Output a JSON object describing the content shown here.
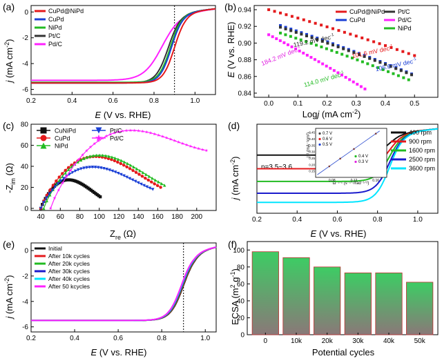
{
  "panels": {
    "a": {
      "letter": "(a)",
      "ylabel_italic": "j",
      "ylabel_rest": " (mA cm",
      "ylabel_sup": "-2",
      "ylabel_close": ")",
      "xlabel_italic": "E",
      "xlabel_rest": " (V vs. RHE)",
      "dashed_x": 0.9
    },
    "b": {
      "letter": "(b)",
      "ylabel_italic": "E",
      "ylabel_rest": " (V vs. RHE)",
      "xlabel_italic": "j",
      "xlabel_pre": "Log",
      "xlabel_rest": " (mA cm",
      "xlabel_sup": "-2",
      "xlabel_close": ")",
      "slope_sup": "-1",
      "slopes": [
        {
          "text": "101.6 mV dec",
          "color": "#e41a1c"
        },
        {
          "text": "119.2 mV dec",
          "color": "#222222"
        },
        {
          "text": "106.6 mV dec",
          "color": "#1a3fd6"
        },
        {
          "text": "114.0 mV dec",
          "color": "#22bb22"
        },
        {
          "text": "184.2 mV dec",
          "color": "#e020e0"
        }
      ]
    },
    "c": {
      "letter": "(c)",
      "ylabel_main": "-Z",
      "ylabel_sub": "im",
      "ylabel_unit": " (Ω)",
      "xlabel_main": "Z",
      "xlabel_sub": "re",
      "xlabel_unit": " (Ω)"
    },
    "d": {
      "letter": "(d)",
      "n_label": "n=3.5~3.6",
      "ylabel_italic": "j",
      "ylabel_rest": " (mA cm",
      "ylabel_sup": "-2",
      "ylabel_close": ")",
      "xlabel_italic": "E",
      "xlabel_rest": " (V vs. RHE)",
      "inset": {
        "ylabel": "j⁻¹ (mA⁻¹cm²)",
        "xlabel": "ω⁻¹ᐟ² (s⁻¹ᐟ²/rad⁻¹ᐟ²)",
        "legend": [
          {
            "label": "0.7 V",
            "color": "#444444"
          },
          {
            "label": "0.6 V",
            "color": "#e41a1c"
          },
          {
            "label": "0.5 V",
            "color": "#1a3fd6"
          },
          {
            "label": "0.4 V",
            "color": "#22bb22"
          },
          {
            "label": "0.3 V",
            "color": "#e020e0"
          }
        ],
        "xticks": [
          "0.08",
          "0.12",
          "0.16"
        ],
        "yticks": [
          "0.15",
          "0.20",
          "0.25",
          "0.30",
          "0.35",
          "0.40",
          "0.45"
        ]
      }
    },
    "e": {
      "letter": "(e)",
      "ylabel_italic": "j",
      "ylabel_rest": " (mA cm",
      "ylabel_sup": "-2",
      "ylabel_close": ")",
      "xlabel_italic": "E",
      "xlabel_rest": " (V vs. RHE)",
      "dashed_x": 0.9
    },
    "f": {
      "letter": "(f)",
      "ylabel": "ECSA (m",
      "ylabel_sup": "2",
      "ylabel_mid": " g",
      "ylabel_sup2": "-1",
      "ylabel_close": ")",
      "xlabel": "Potential cycles"
    }
  },
  "chart_data": [
    {
      "panel": "a",
      "type": "line",
      "xlabel": "E (V vs. RHE)",
      "ylabel": "j (mA cm-2)",
      "xlim": [
        0.2,
        1.1
      ],
      "ylim": [
        -6.4,
        0.5
      ],
      "xticks": [
        0.2,
        0.4,
        0.6,
        0.8,
        1.0
      ],
      "yticks": [
        0,
        -2,
        -4,
        -6
      ],
      "legend_position": "top-left",
      "series": [
        {
          "name": "CuPd@NiPd",
          "color": "#e41a1c",
          "limit": -5.5,
          "half_wave": 0.9,
          "width": 0.028
        },
        {
          "name": "CuPd",
          "color": "#1a3fd6",
          "limit": -5.5,
          "half_wave": 0.885,
          "width": 0.028
        },
        {
          "name": "NiPd",
          "color": "#22bb22",
          "limit": -5.45,
          "half_wave": 0.88,
          "width": 0.028
        },
        {
          "name": "Pt/C",
          "color": "#333333",
          "limit": -5.5,
          "half_wave": 0.87,
          "width": 0.03
        },
        {
          "name": "Pd/C",
          "color": "#ff20ff",
          "limit": -5.3,
          "half_wave": 0.84,
          "width": 0.045
        }
      ]
    },
    {
      "panel": "b",
      "type": "scatter",
      "xlabel": "Logj (mA cm-2)",
      "ylabel": "E (V vs. RHE)",
      "xlim": [
        -0.05,
        0.58
      ],
      "ylim": [
        0.835,
        0.945
      ],
      "xticks": [
        0.0,
        0.1,
        0.2,
        0.3,
        0.4,
        0.5
      ],
      "yticks": [
        0.84,
        0.86,
        0.88,
        0.9,
        0.92,
        0.94
      ],
      "legend_position": "top-right",
      "series": [
        {
          "name": "CuPd@NiPd",
          "color": "#e41a1c",
          "x": [
            0.0,
            0.5
          ],
          "y": [
            0.94,
            0.891
          ]
        },
        {
          "name": "CuPd",
          "color": "#1a3fd6",
          "x": [
            0.04,
            0.49
          ],
          "y": [
            0.921,
            0.869
          ]
        },
        {
          "name": "Pt/C",
          "color": "#333333",
          "x": [
            0.04,
            0.49
          ],
          "y": [
            0.919,
            0.868
          ]
        },
        {
          "name": "NiPd",
          "color": "#22bb22",
          "x": [
            0.04,
            0.48
          ],
          "y": [
            0.912,
            0.862
          ]
        },
        {
          "name": "Pd/C",
          "color": "#ff20ff",
          "x": [
            0.0,
            0.33
          ],
          "y": [
            0.91,
            0.851
          ]
        }
      ]
    },
    {
      "panel": "c",
      "type": "scatter",
      "xlabel": "Zre (Ω)",
      "ylabel": "-Zim (Ω)",
      "xlim": [
        30,
        220
      ],
      "ylim": [
        -2,
        80
      ],
      "xticks": [
        40,
        60,
        80,
        100,
        120,
        140,
        160,
        180,
        200
      ],
      "yticks": [
        0,
        20,
        40,
        60,
        80
      ],
      "legend_position": "top-left",
      "series": [
        {
          "name": "CuNiPd",
          "color": "#111111",
          "marker": "square",
          "x0": 40,
          "x1": 101,
          "peak": 25
        },
        {
          "name": "CuPd",
          "color": "#e41a1c",
          "marker": "circle",
          "x0": 40,
          "x1": 163,
          "peak": 51
        },
        {
          "name": "NiPd",
          "color": "#22bb22",
          "marker": "triangle-up",
          "x0": 43,
          "x1": 167,
          "peak": 52
        },
        {
          "name": "Pt/C",
          "color": "#1a3fd6",
          "marker": "triangle-down",
          "x0": 40,
          "x1": 155,
          "peak": 40
        },
        {
          "name": "Pd/C",
          "color": "#ff20ff",
          "marker": "star",
          "x0": 50,
          "x1": 210,
          "peak": 70
        }
      ]
    },
    {
      "panel": "d",
      "type": "line",
      "xlabel": "E (V vs. RHE)",
      "ylabel": "j (mA cm-2)",
      "xlim": [
        0.2,
        1.1
      ],
      "xticks": [
        0.2,
        0.4,
        0.6,
        0.8,
        1.0
      ],
      "legend_position": "right",
      "series": [
        {
          "name": "400 rpm",
          "color": "#111111",
          "limit": -2.6
        },
        {
          "name": "900 rpm",
          "color": "#e41a1c",
          "limit": -4.1
        },
        {
          "name": "1600 rpm",
          "color": "#22bb22",
          "limit": -5.5
        },
        {
          "name": "2500 rpm",
          "color": "#1a1acc",
          "limit": -6.8
        },
        {
          "name": "3600 rpm",
          "color": "#00e5ff",
          "limit": -7.8
        }
      ],
      "inset": {
        "type": "line",
        "xlim": [
          0.05,
          0.18
        ],
        "ylim": [
          0.1,
          0.48
        ],
        "series": [
          {
            "name": "0.7 V",
            "x": [
              0.053,
              0.167
            ],
            "y": [
              0.12,
              0.46
            ]
          },
          {
            "name": "0.6 V",
            "x": [
              0.053,
              0.167
            ],
            "y": [
              0.12,
              0.46
            ]
          },
          {
            "name": "0.5 V",
            "x": [
              0.053,
              0.167
            ],
            "y": [
              0.12,
              0.46
            ]
          },
          {
            "name": "0.4 V",
            "x": [
              0.053,
              0.167
            ],
            "y": [
              0.12,
              0.46
            ]
          },
          {
            "name": "0.3 V",
            "x": [
              0.053,
              0.167
            ],
            "y": [
              0.12,
              0.46
            ]
          }
        ]
      }
    },
    {
      "panel": "e",
      "type": "line",
      "xlabel": "E (V vs. RHE)",
      "ylabel": "j (mA cm-2)",
      "xlim": [
        0.2,
        1.05
      ],
      "ylim": [
        -6.4,
        0.6
      ],
      "xticks": [
        0.2,
        0.4,
        0.6,
        0.8,
        1.0
      ],
      "yticks": [
        0,
        -2,
        -4,
        -6
      ],
      "legend_position": "top-left",
      "series": [
        {
          "name": "Initial",
          "color": "#111111",
          "limit": -5.5,
          "half_wave": 0.9
        },
        {
          "name": "After 10k cycles",
          "color": "#e41a1c",
          "limit": -5.5,
          "half_wave": 0.898
        },
        {
          "name": "After 20k cycles",
          "color": "#22bb22",
          "limit": -5.5,
          "half_wave": 0.896
        },
        {
          "name": "After 30k cycles",
          "color": "#1a1acc",
          "limit": -5.5,
          "half_wave": 0.894
        },
        {
          "name": "After 40k cycles",
          "color": "#00e5ff",
          "limit": -5.5,
          "half_wave": 0.892
        },
        {
          "name": "After 50 kcycles",
          "color": "#ff20ff",
          "limit": -5.5,
          "half_wave": 0.89
        }
      ]
    },
    {
      "panel": "f",
      "type": "bar",
      "xlabel": "Potential cycles",
      "ylabel": "ECSA (m2 g-1)",
      "categories": [
        "0",
        "10k",
        "20k",
        "30k",
        "40k",
        "50k"
      ],
      "values": [
        98,
        91,
        80,
        73,
        73,
        62
      ],
      "ylim": [
        0,
        110
      ],
      "yticks": [
        0,
        20,
        40,
        60,
        80,
        100
      ]
    }
  ],
  "colors": {
    "axis": "#000000",
    "bar_top": "#3dcc64",
    "bar_bottom": "#8a7878",
    "bar_edge": "#c03030"
  }
}
